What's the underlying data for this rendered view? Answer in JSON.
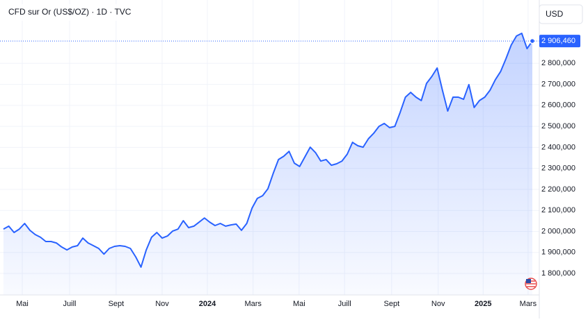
{
  "chart_data": {
    "type": "area",
    "title": "CFD sur Or (US$/OZ) · 1D · TVC",
    "currency_button": "USD",
    "series": [
      {
        "color": "#2962ff",
        "values": [
          2011,
          2025,
          1995,
          2011,
          2038,
          2005,
          1985,
          1972,
          1952,
          1952,
          1945,
          1926,
          1912,
          1926,
          1932,
          1968,
          1945,
          1932,
          1919,
          1892,
          1919,
          1929,
          1932,
          1929,
          1919,
          1879,
          1830,
          1912,
          1972,
          1995,
          1968,
          1978,
          2002,
          2011,
          2051,
          2018,
          2025,
          2044,
          2064,
          2044,
          2028,
          2038,
          2025,
          2031,
          2035,
          2005,
          2038,
          2111,
          2157,
          2170,
          2203,
          2276,
          2342,
          2358,
          2381,
          2325,
          2309,
          2355,
          2401,
          2375,
          2335,
          2342,
          2315,
          2322,
          2335,
          2368,
          2424,
          2408,
          2401,
          2441,
          2467,
          2500,
          2514,
          2494,
          2500,
          2566,
          2639,
          2662,
          2639,
          2623,
          2705,
          2738,
          2778,
          2672,
          2573,
          2639,
          2639,
          2629,
          2699,
          2590,
          2623,
          2639,
          2672,
          2722,
          2761,
          2821,
          2887,
          2930,
          2943,
          2870,
          2906.46
        ]
      }
    ],
    "last_price": {
      "value": 2906.46,
      "label": "2 906,460"
    },
    "xlim": [
      -0.66,
      101.32
    ],
    "xticks": [
      {
        "value": 3.55,
        "label": "Mai"
      },
      {
        "value": 12.5,
        "label": "Juill"
      },
      {
        "value": 21.3,
        "label": "Sept"
      },
      {
        "value": 30,
        "label": "Nov"
      },
      {
        "value": 38.55,
        "label": "2024"
      },
      {
        "value": 47.2,
        "label": "Mars"
      },
      {
        "value": 55.9,
        "label": "Mai"
      },
      {
        "value": 64.5,
        "label": "Juill"
      },
      {
        "value": 73.4,
        "label": "Sept"
      },
      {
        "value": 82.2,
        "label": "Nov"
      },
      {
        "value": 90.7,
        "label": "2025"
      },
      {
        "value": 99.2,
        "label": "Mars"
      }
    ],
    "ylim": [
      1697.6,
      3101.6
    ],
    "yticks": [
      {
        "value": 1800,
        "label": "1 800,000"
      },
      {
        "value": 1900,
        "label": "1 900,000"
      },
      {
        "value": 2000,
        "label": "2 000,000"
      },
      {
        "value": 2100,
        "label": "2 100,000"
      },
      {
        "value": 2200,
        "label": "2 200,000"
      },
      {
        "value": 2300,
        "label": "2 300,000"
      },
      {
        "value": 2400,
        "label": "2 400,000"
      },
      {
        "value": 2500,
        "label": "2 500,000"
      },
      {
        "value": 2600,
        "label": "2 600,000"
      },
      {
        "value": 2700,
        "label": "2 700,000"
      },
      {
        "value": 2800,
        "label": "2 800,000"
      }
    ],
    "grid": true
  }
}
